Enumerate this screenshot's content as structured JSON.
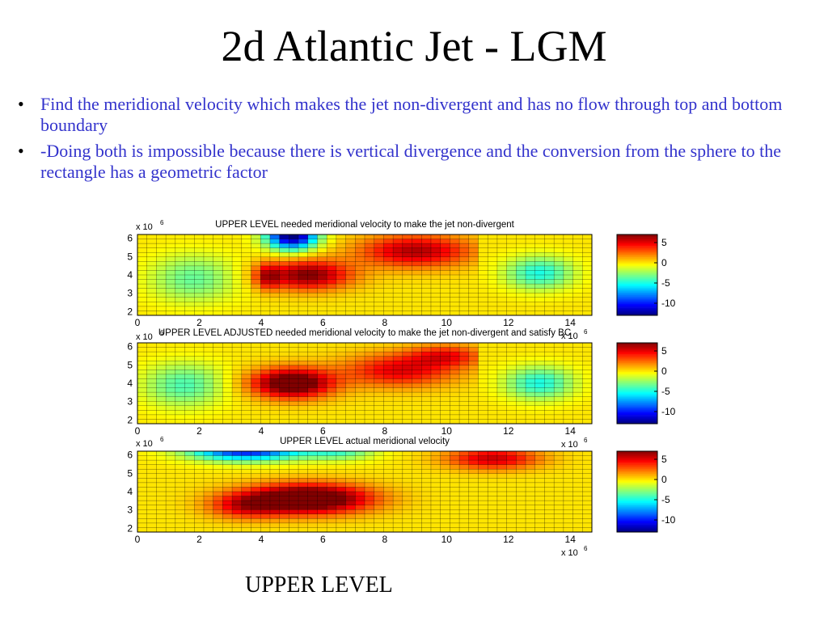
{
  "slide": {
    "title": "2d Atlantic Jet - LGM",
    "bullets": [
      "Find the meridional velocity which makes the jet non-divergent and has no flow through top and bottom boundary",
      "-Doing both is impossible because there is vertical divergence and the conversion from the sphere to the rectangle has a geometric factor"
    ],
    "bullet_marker": "•",
    "footer": "UPPER LEVEL"
  },
  "chart_data": [
    {
      "type": "heatmap",
      "title": "UPPER LEVEL needed meridional velocity to make the jet non-divergent",
      "x_ticks": [
        0,
        2,
        4,
        6,
        8,
        10,
        12,
        14
      ],
      "y_ticks": [
        2,
        3,
        4,
        5,
        6
      ],
      "x_scale_label": "x 10",
      "x_scale_exp": "6",
      "y_scale_label": "x 10",
      "y_scale_exp": "6",
      "xlim": [
        0,
        14.7
      ],
      "ylim": [
        1.8,
        6.2
      ],
      "colorbar_ticks": [
        5,
        0,
        -5,
        -10
      ],
      "clim": [
        -13,
        7
      ],
      "features": [
        {
          "x": 5.5,
          "y": 4.0,
          "amp": 7.0,
          "sx": 1.4,
          "sy": 0.8
        },
        {
          "x": 9.0,
          "y": 5.3,
          "amp": 6.0,
          "sx": 1.8,
          "sy": 0.9
        },
        {
          "x": 4.2,
          "y": 3.9,
          "amp": 4.0,
          "sx": 0.4,
          "sy": 0.7
        },
        {
          "x": 5.0,
          "y": 6.2,
          "amp": -14.0,
          "sx": 0.8,
          "sy": 0.8
        },
        {
          "x": 1.8,
          "y": 3.8,
          "amp": -3.5,
          "sx": 1.4,
          "sy": 1.3
        },
        {
          "x": 13.0,
          "y": 4.1,
          "amp": -5.0,
          "sx": 1.1,
          "sy": 0.9
        }
      ],
      "cutoff_x": 11.0
    },
    {
      "type": "heatmap",
      "title": "UPPER LEVEL ADJUSTED needed meridional velocity to make the jet non-divergent and satisfy BC",
      "x_ticks": [
        0,
        2,
        4,
        6,
        8,
        10,
        12,
        14
      ],
      "y_ticks": [
        2,
        3,
        4,
        5,
        6
      ],
      "x_scale_label": "x 10",
      "x_scale_exp": "6",
      "y_scale_label": "x 10",
      "y_scale_exp": "6",
      "xlim": [
        0,
        14.7
      ],
      "ylim": [
        1.8,
        6.2
      ],
      "colorbar_ticks": [
        5,
        0,
        -5,
        -10
      ],
      "clim": [
        -13,
        7
      ],
      "features": [
        {
          "x": 5.0,
          "y": 4.0,
          "amp": 9.0,
          "sx": 1.3,
          "sy": 0.8
        },
        {
          "x": 8.5,
          "y": 4.7,
          "amp": 5.0,
          "sx": 1.8,
          "sy": 0.9
        },
        {
          "x": 10.0,
          "y": 5.5,
          "amp": 4.0,
          "sx": 1.2,
          "sy": 0.6
        },
        {
          "x": 1.5,
          "y": 3.9,
          "amp": -4.0,
          "sx": 1.3,
          "sy": 1.2
        },
        {
          "x": 13.0,
          "y": 4.0,
          "amp": -5.0,
          "sx": 1.1,
          "sy": 0.9
        }
      ],
      "cutoff_x": 11.0
    },
    {
      "type": "heatmap",
      "title": "UPPER LEVEL actual meridional velocity",
      "x_ticks": [
        0,
        2,
        4,
        6,
        8,
        10,
        12,
        14
      ],
      "y_ticks": [
        2,
        3,
        4,
        5,
        6
      ],
      "x_scale_label": "x 10",
      "x_scale_exp": "6",
      "y_scale_label": "x 10",
      "y_scale_exp": "6",
      "xlim": [
        0,
        14.7
      ],
      "ylim": [
        1.8,
        6.2
      ],
      "colorbar_ticks": [
        5,
        0,
        -5,
        -10
      ],
      "clim": [
        -13,
        7
      ],
      "features": [
        {
          "x": 5.5,
          "y": 3.6,
          "amp": 10.0,
          "sx": 2.0,
          "sy": 0.8
        },
        {
          "x": 3.5,
          "y": 3.2,
          "amp": 4.0,
          "sx": 1.2,
          "sy": 0.7
        },
        {
          "x": 11.5,
          "y": 5.8,
          "amp": 5.5,
          "sx": 1.5,
          "sy": 0.6
        },
        {
          "x": 3.5,
          "y": 6.3,
          "amp": -11.0,
          "sx": 1.8,
          "sy": 0.6
        },
        {
          "x": 6.5,
          "y": 6.2,
          "amp": -4.0,
          "sx": 1.2,
          "sy": 0.5
        }
      ],
      "cutoff_x": null
    }
  ]
}
